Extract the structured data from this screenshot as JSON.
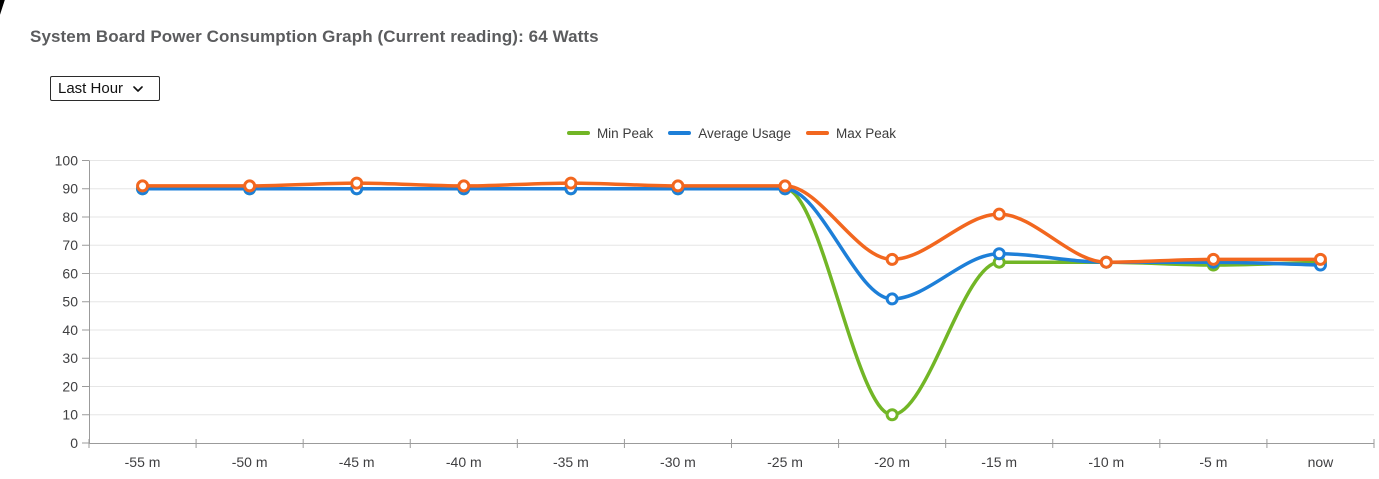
{
  "page": {
    "title": "System Board Power Consumption Graph (Current reading): 64 Watts"
  },
  "controls": {
    "range_select": {
      "value": "Last Hour"
    }
  },
  "chart_data": {
    "type": "line",
    "x": [
      "-55 m",
      "-50 m",
      "-45 m",
      "-40 m",
      "-35 m",
      "-30 m",
      "-25 m",
      "-20 m",
      "-15 m",
      "-10 m",
      "-5 m",
      "now"
    ],
    "series": [
      {
        "name": "Min Peak",
        "color": "#72b626",
        "values": [
          90,
          90,
          90,
          90,
          90,
          90,
          90,
          10,
          64,
          64,
          63,
          64
        ]
      },
      {
        "name": "Average Usage",
        "color": "#1d7fd8",
        "values": [
          90,
          90,
          90,
          90,
          90,
          90,
          90,
          51,
          67,
          64,
          64,
          63
        ]
      },
      {
        "name": "Max Peak",
        "color": "#f2671f",
        "values": [
          91,
          91,
          92,
          91,
          92,
          91,
          91,
          65,
          81,
          64,
          65,
          65
        ]
      }
    ],
    "ylim": [
      0,
      100
    ],
    "yticks": [
      0,
      10,
      20,
      30,
      40,
      50,
      60,
      70,
      80,
      90,
      100
    ],
    "grid": true,
    "legend_position": "top-center",
    "axis_color": "#9b9b9b",
    "grid_color": "#e6e6e6",
    "tick_label_color": "#3f3f41"
  }
}
